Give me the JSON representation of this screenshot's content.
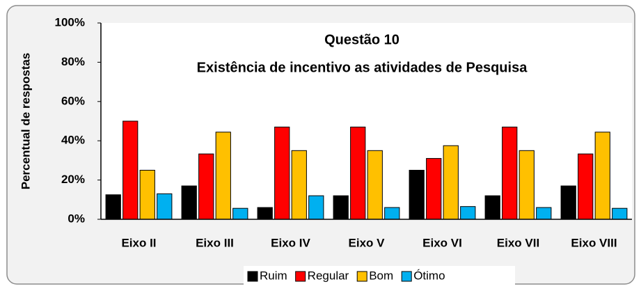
{
  "chart_data": {
    "type": "bar",
    "title": "Questão 10",
    "subtitle": "Existência de incentivo as atividades de Pesquisa",
    "y_label": "Percentual de respostas",
    "categories": [
      "Eixo II",
      "Eixo III",
      "Eixo IV",
      "Eixo V",
      "Eixo VI",
      "Eixo VII",
      "Eixo VIII"
    ],
    "series": [
      {
        "name": "Ruim",
        "color": "#000000",
        "values": [
          12.5,
          17,
          6,
          12,
          25,
          12,
          17
        ]
      },
      {
        "name": "Regular",
        "color": "#ff0000",
        "values": [
          50,
          33.3,
          47,
          47,
          31,
          47,
          33.3
        ]
      },
      {
        "name": "Bom",
        "color": "#ffc000",
        "values": [
          25,
          44.4,
          35,
          35,
          37.5,
          35,
          44.4
        ]
      },
      {
        "name": "Ótimo",
        "color": "#00b0f0",
        "values": [
          13,
          5.6,
          12,
          6,
          6.5,
          6,
          5.6
        ]
      }
    ],
    "ylim": [
      0,
      100
    ],
    "yticks": [
      {
        "value": 0,
        "label": "0%"
      },
      {
        "value": 20,
        "label": "20%"
      },
      {
        "value": 40,
        "label": "40%"
      },
      {
        "value": 60,
        "label": "60%"
      },
      {
        "value": 80,
        "label": "80%"
      },
      {
        "value": 100,
        "label": "100%"
      }
    ],
    "legend": "bottom"
  }
}
